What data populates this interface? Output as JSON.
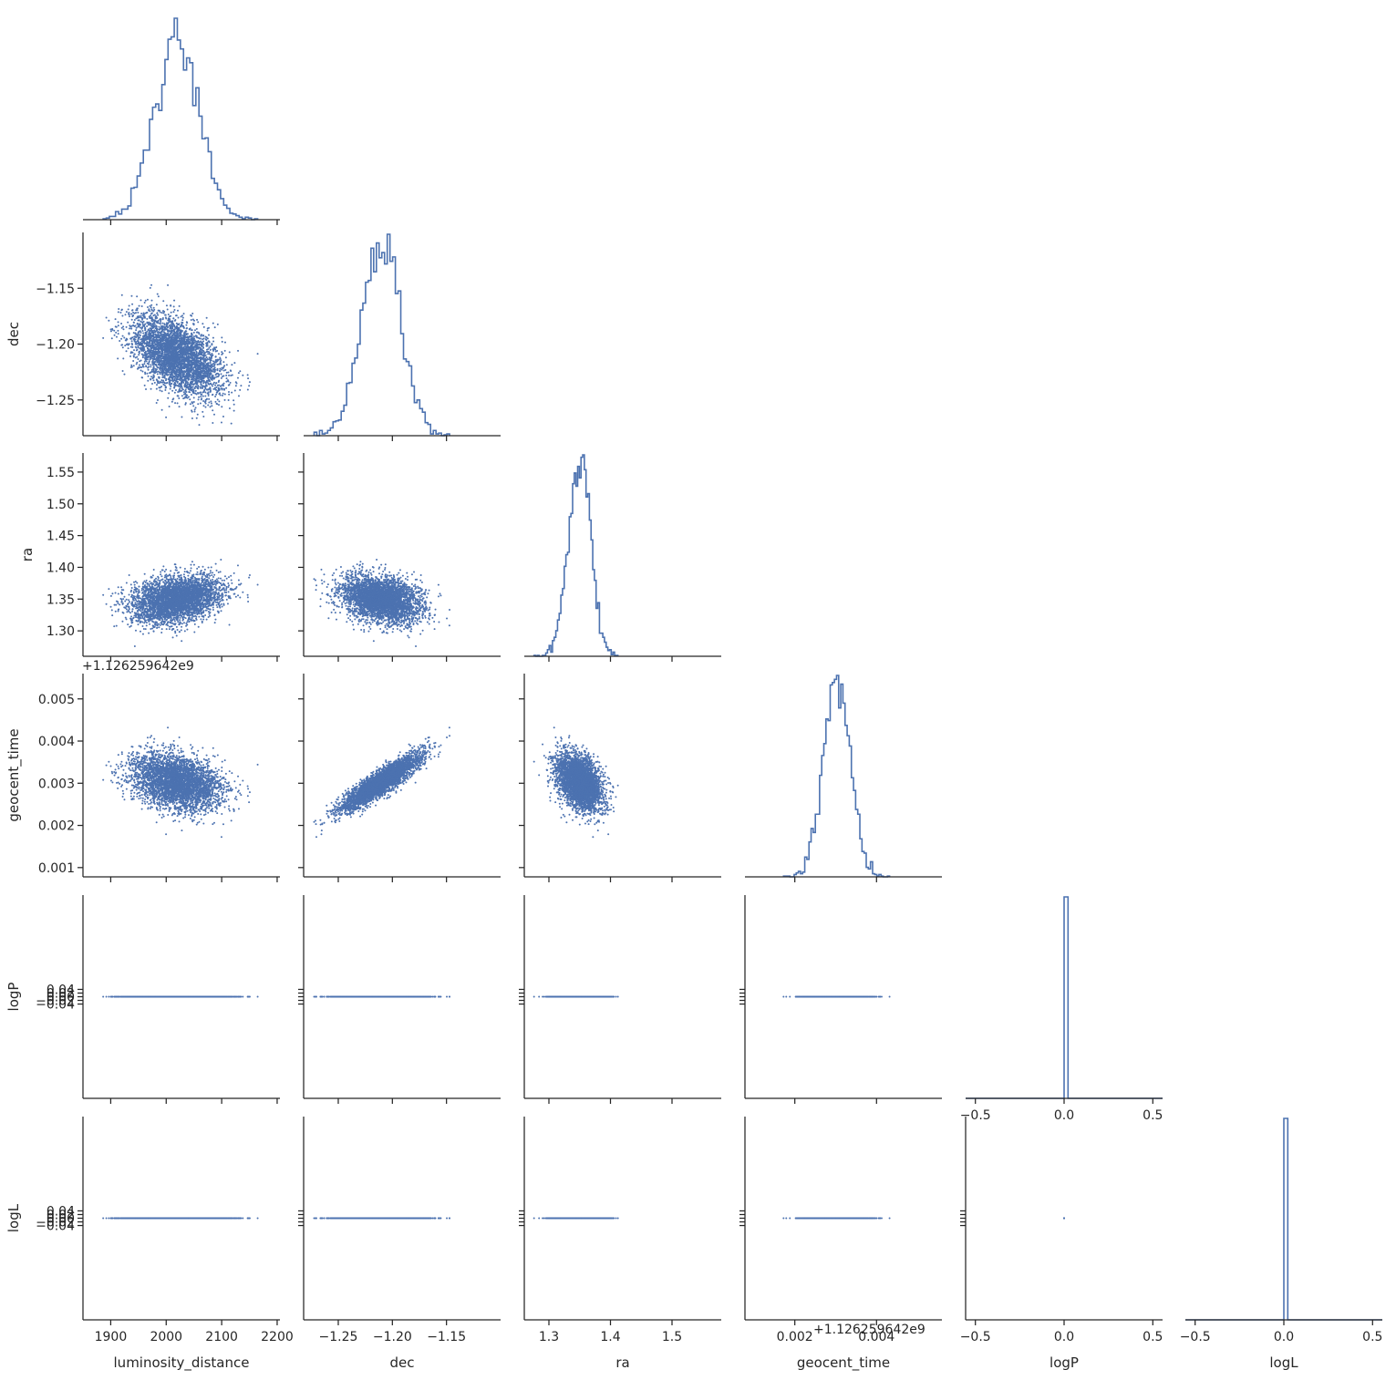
{
  "chart_data": {
    "type": "pairplot-corner",
    "colors": {
      "series": "#4c72b0",
      "axis": "#262626"
    },
    "variables": [
      "luminosity_distance",
      "dec",
      "ra",
      "geocent_time",
      "logP",
      "logL"
    ],
    "axes": {
      "luminosity_distance": {
        "label": "luminosity_distance",
        "range": [
          1850,
          2205
        ],
        "ticks": [
          1900,
          2000,
          2100,
          2200
        ],
        "tick_labels": [
          "1900",
          "2000",
          "2100",
          "2200"
        ]
      },
      "dec": {
        "label": "dec",
        "range": [
          -1.282,
          -1.1
        ],
        "ticks": [
          -1.25,
          -1.2,
          -1.15
        ],
        "tick_labels": [
          "−1.25",
          "−1.20",
          "−1.15"
        ]
      },
      "ra": {
        "label": "ra",
        "range": [
          1.26,
          1.58
        ],
        "ticks": [
          1.3,
          1.35,
          1.4,
          1.45,
          1.5,
          1.55
        ],
        "tick_labels": [
          "1.30",
          "1.35",
          "1.40",
          "1.45",
          "1.50",
          "1.55"
        ]
      },
      "geocent_time": {
        "label": "geocent_time",
        "range": [
          0.00078,
          0.0056
        ],
        "ticks": [
          0.001,
          0.002,
          0.003,
          0.004,
          0.005
        ],
        "tick_labels": [
          "0.001",
          "0.002",
          "0.003",
          "0.004",
          "0.005"
        ],
        "offset_label": "+1.126259642e9"
      },
      "logP": {
        "label": "logP",
        "range": [
          -0.555,
          0.555
        ],
        "ticks": [
          -0.04,
          -0.02,
          0.0,
          0.02,
          0.04
        ],
        "tick_labels": [
          "−0.04",
          "−0.02",
          "0.00",
          "0.02",
          "0.04"
        ],
        "diag_ticks": [
          -0.5,
          0.0,
          0.5
        ],
        "diag_tick_labels": [
          "−0.5",
          "0.0",
          "0.5"
        ]
      },
      "logL": {
        "label": "logL",
        "range": [
          -0.555,
          0.555
        ],
        "ticks": [
          -0.04,
          -0.02,
          0.0,
          0.02,
          0.04
        ],
        "tick_labels": [
          "−0.04",
          "−0.02",
          "0.00",
          "0.02",
          "0.04"
        ],
        "diag_ticks": [
          -0.5,
          0.0,
          0.5
        ],
        "diag_tick_labels": [
          "−0.5",
          "0.0",
          "0.5"
        ]
      }
    },
    "x_axis_ticks": {
      "luminosity_distance": {
        "ticks": [
          1900,
          2000,
          2100,
          2200
        ],
        "tick_labels": [
          "1900",
          "2000",
          "2100",
          "2200"
        ]
      },
      "dec": {
        "ticks": [
          -1.25,
          -1.2,
          -1.15
        ],
        "tick_labels": [
          "−1.25",
          "−1.20",
          "−1.15"
        ]
      },
      "ra": {
        "ticks": [
          1.3,
          1.4,
          1.5
        ],
        "tick_labels": [
          "1.3",
          "1.4",
          "1.5"
        ]
      },
      "geocent_time": {
        "ticks": [
          0.002,
          0.004
        ],
        "tick_labels": [
          "0.002",
          "0.004"
        ]
      },
      "logP": {
        "ticks": [
          -0.5,
          0.0,
          0.5
        ],
        "tick_labels": [
          "−0.5",
          "0.0",
          "0.5"
        ]
      },
      "logL": {
        "ticks": [
          -0.5,
          0.0,
          0.5
        ],
        "tick_labels": [
          "−0.5",
          "0.0",
          "0.5"
        ]
      }
    },
    "y_axis_ticks": {
      "dec": {
        "ticks": [
          -1.25,
          -1.2,
          -1.15
        ],
        "tick_labels": [
          "−1.25",
          "−1.20",
          "−1.15"
        ]
      },
      "ra": {
        "ticks": [
          1.3,
          1.35,
          1.4,
          1.45,
          1.5,
          1.55
        ],
        "tick_labels": [
          "1.30",
          "1.35",
          "1.40",
          "1.45",
          "1.50",
          "1.55"
        ]
      },
      "geocent_time": {
        "ticks": [
          0.001,
          0.002,
          0.003,
          0.004,
          0.005
        ],
        "tick_labels": [
          "0.001",
          "0.002",
          "0.003",
          "0.004",
          "0.005"
        ]
      },
      "logP": {
        "ticks": [
          -0.04,
          -0.02,
          0.0,
          0.02,
          0.04
        ],
        "tick_labels": [
          "−0.04",
          "−0.02",
          "0.00",
          "0.02",
          "0.04"
        ]
      },
      "logL": {
        "ticks": [
          -0.04,
          -0.02,
          0.0,
          0.02,
          0.04
        ],
        "tick_labels": [
          "−0.04",
          "−0.02",
          "0.00",
          "0.02",
          "0.04"
        ]
      }
    },
    "distributions": {
      "luminosity_distance": {
        "mean": 2020,
        "sd": 40,
        "min": 1864,
        "max": 2190
      },
      "dec": {
        "mean": -1.21,
        "sd": 0.018,
        "min": -1.275,
        "max": -1.11
      },
      "ra": {
        "mean": 1.35,
        "sd": 0.018,
        "min": 1.27,
        "max": 1.566
      },
      "geocent_time": {
        "mean": 0.00303,
        "sd": 0.00033,
        "min": 0.00095,
        "max": 0.00537
      },
      "logP": {
        "constant": 0.0
      },
      "logL": {
        "constant": 0.0
      }
    },
    "correlations": {
      "dec|luminosity_distance": -0.5,
      "ra|luminosity_distance": 0.3,
      "ra|dec": -0.3,
      "geocent_time|dec": 0.9,
      "geocent_time|luminosity_distance": -0.3,
      "geocent_time|ra": -0.4
    },
    "sample_count": 4000,
    "histogram_bins": 50,
    "offset_labels": [
      "+1.126259642e9",
      "+1.126259642e9"
    ]
  }
}
